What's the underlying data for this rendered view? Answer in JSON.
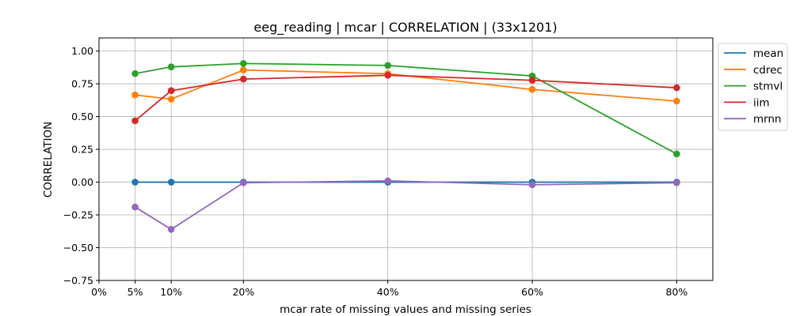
{
  "chart_data": {
    "type": "line",
    "title": "eeg_reading | mcar | CORRELATION | (33x1201)",
    "xlabel": "mcar rate of missing values and missing series",
    "ylabel": "CORRELATION",
    "x": [
      5,
      10,
      20,
      40,
      60,
      80
    ],
    "xlim": [
      0,
      85
    ],
    "x_ticks": [
      0,
      5,
      10,
      20,
      40,
      60,
      80
    ],
    "x_tick_labels": [
      "0%",
      "5%",
      "10%",
      "20%",
      "40%",
      "60%",
      "80%"
    ],
    "ylim": [
      -0.75,
      1.1
    ],
    "y_ticks": [
      -0.75,
      -0.5,
      -0.25,
      0.0,
      0.25,
      0.5,
      0.75,
      1.0
    ],
    "y_tick_labels": [
      "−0.75",
      "−0.50",
      "−0.25",
      "0.00",
      "0.25",
      "0.50",
      "0.75",
      "1.00"
    ],
    "grid": true,
    "legend_position": "outside-top-right",
    "series": [
      {
        "name": "mean",
        "color": "#1f77b4",
        "values": [
          0.0,
          0.0,
          0.0,
          0.0,
          0.0,
          0.0
        ]
      },
      {
        "name": "cdrec",
        "color": "#ff7f0e",
        "values": [
          0.665,
          0.633,
          0.855,
          0.827,
          0.707,
          0.618
        ]
      },
      {
        "name": "stmvl",
        "color": "#2ca02c",
        "values": [
          0.828,
          0.879,
          0.905,
          0.89,
          0.81,
          0.215
        ]
      },
      {
        "name": "iim",
        "color": "#d62728",
        "values": [
          0.468,
          0.698,
          0.786,
          0.815,
          0.777,
          0.72
        ]
      },
      {
        "name": "mrnn",
        "color": "#9467bd",
        "values": [
          -0.19,
          -0.36,
          -0.005,
          0.01,
          -0.02,
          -0.005
        ]
      }
    ]
  }
}
